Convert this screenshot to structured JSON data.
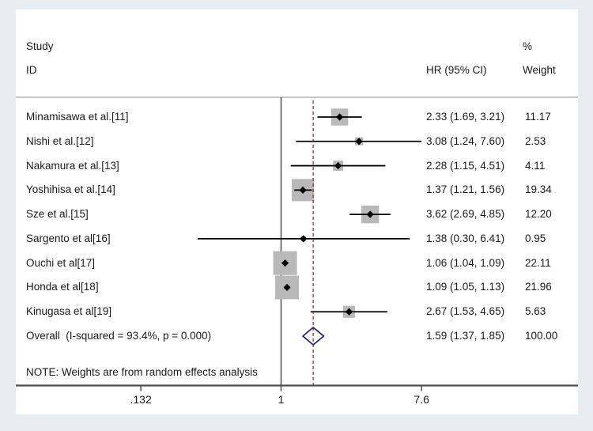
{
  "colors": {
    "background": "#e7edf0",
    "panel": "#ffffff",
    "axis_line": "#4d4d4d",
    "header_rule": "#a6a6a6",
    "ci_line": "#000000",
    "weight_box": "#b9b9b9",
    "marker": "#000000",
    "overall_diamond_outline": "#20207a",
    "ref_dashed_line": "#8e2130",
    "text": "#1a1a1a"
  },
  "header": {
    "study_line1": "Study",
    "study_line2": "ID",
    "effect": "HR (95% CI)",
    "weight_line1": "%",
    "weight_line2": "Weight"
  },
  "note": "NOTE: Weights are from random effects analysis",
  "chart_data": {
    "type": "forest",
    "x_scale": "log",
    "x_ticks": [
      {
        "value": 0.132,
        "label": ".132"
      },
      {
        "value": 1,
        "label": "1"
      },
      {
        "value": 7.6,
        "label": "7.6"
      }
    ],
    "null_line_value": 1,
    "studies": [
      {
        "label": "Minamisawa et al.[11]",
        "hr": 2.33,
        "ci_low": 1.69,
        "ci_high": 3.21,
        "hr_ci_text": "2.33 (1.69, 3.21)",
        "weight_pct": 11.17,
        "weight_text": "11.17"
      },
      {
        "label": "Nishi et al.[12]",
        "hr": 3.08,
        "ci_low": 1.24,
        "ci_high": 7.6,
        "hr_ci_text": "3.08 (1.24, 7.60)",
        "weight_pct": 2.53,
        "weight_text": "2.53"
      },
      {
        "label": "Nakamura et al.[13]",
        "hr": 2.28,
        "ci_low": 1.15,
        "ci_high": 4.51,
        "hr_ci_text": "2.28 (1.15, 4.51)",
        "weight_pct": 4.11,
        "weight_text": "4.11"
      },
      {
        "label": "Yoshihisa et al.[14]",
        "hr": 1.37,
        "ci_low": 1.21,
        "ci_high": 1.56,
        "hr_ci_text": "1.37 (1.21, 1.56)",
        "weight_pct": 19.34,
        "weight_text": "19.34"
      },
      {
        "label": "Sze et al.[15]",
        "hr": 3.62,
        "ci_low": 2.69,
        "ci_high": 4.85,
        "hr_ci_text": "3.62 (2.69, 4.85)",
        "weight_pct": 12.2,
        "weight_text": "12.20"
      },
      {
        "label": "Sargento et al[16]",
        "hr": 1.38,
        "ci_low": 0.3,
        "ci_high": 6.41,
        "hr_ci_text": "1.38 (0.30, 6.41)",
        "weight_pct": 0.95,
        "weight_text": "0.95"
      },
      {
        "label": "Ouchi et al[17]",
        "hr": 1.06,
        "ci_low": 1.04,
        "ci_high": 1.09,
        "hr_ci_text": "1.06 (1.04, 1.09)",
        "weight_pct": 22.11,
        "weight_text": "22.11"
      },
      {
        "label": "Honda et al[18]",
        "hr": 1.09,
        "ci_low": 1.05,
        "ci_high": 1.13,
        "hr_ci_text": "1.09 (1.05, 1.13)",
        "weight_pct": 21.96,
        "weight_text": "21.96"
      },
      {
        "label": "Kinugasa et al[19]",
        "hr": 2.67,
        "ci_low": 1.53,
        "ci_high": 4.65,
        "hr_ci_text": "2.67 (1.53, 4.65)",
        "weight_pct": 5.63,
        "weight_text": "5.63"
      }
    ],
    "overall": {
      "label": "Overall  (I-squared = 93.4%, p = 0.000)",
      "hr": 1.59,
      "ci_low": 1.37,
      "ci_high": 1.85,
      "hr_ci_text": "1.59 (1.37, 1.85)",
      "weight_pct": 100.0,
      "weight_text": "100.00"
    }
  }
}
